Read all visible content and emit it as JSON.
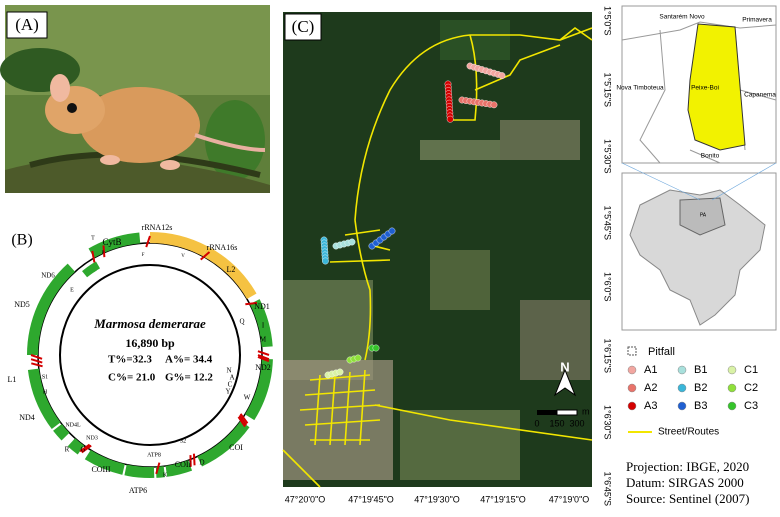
{
  "panel_a": {
    "label": "(A)"
  },
  "panel_b": {
    "label": "(B)",
    "species": "Marmosa demerarae",
    "length": "16,890 bp",
    "composition": [
      "T%=32.3",
      "A%= 34.4",
      "C%= 21.0",
      "G%= 12.2"
    ],
    "genes": [
      "CytB",
      "T",
      "P",
      "rRNA12s",
      "F",
      "V",
      "rRNA16s",
      "L2",
      "ND1",
      "I",
      "M",
      "Q",
      "ND2",
      "W",
      "A",
      "C",
      "N",
      "Y",
      "COI",
      "S2",
      "D",
      "COII",
      "K",
      "ATP8",
      "ATP6",
      "COIII",
      "G",
      "R",
      "ND3",
      "ND4L",
      "ND4",
      "H",
      "S1",
      "L1",
      "ND5",
      "ND6",
      "E"
    ]
  },
  "panel_c": {
    "label": "(C)",
    "lat_labels": [
      "1°5'0\"S",
      "1°5'15\"S",
      "1°5'30\"S",
      "1°5'45\"S",
      "1°6'0\"S",
      "1°6'15\"S",
      "1°6'30\"S",
      "1°6'45\"S"
    ],
    "lon_labels": [
      "47°20'0\"O",
      "47°19'45\"O",
      "47°19'30\"O",
      "47°19'15\"O",
      "47°19'0\"O"
    ],
    "north": "N",
    "scale": [
      "0",
      "150",
      "300",
      "m"
    ]
  },
  "inset": {
    "regions": [
      "Santarém Novo",
      "Primavera",
      "Peixe-Boi",
      "Nova Timboteua",
      "Capanema",
      "Bonito"
    ],
    "state": "PA"
  },
  "legend": {
    "title": "Pitfall",
    "items": [
      {
        "name": "A1",
        "color": "#f2a6a0"
      },
      {
        "name": "B1",
        "color": "#a8e0dc"
      },
      {
        "name": "C1",
        "color": "#d9f2a6"
      },
      {
        "name": "A2",
        "color": "#e9736a"
      },
      {
        "name": "B2",
        "color": "#3ab6d9"
      },
      {
        "name": "C2",
        "color": "#8fe03a"
      },
      {
        "name": "A3",
        "color": "#d40000"
      },
      {
        "name": "B3",
        "color": "#1f5fd1"
      },
      {
        "name": "C3",
        "color": "#35c42a"
      }
    ],
    "route": "Street/Routes"
  },
  "credits": [
    "Projection: IBGE, 2020",
    "Datum: SIRGAS 2000",
    "Source: Sentinel (2007)"
  ]
}
